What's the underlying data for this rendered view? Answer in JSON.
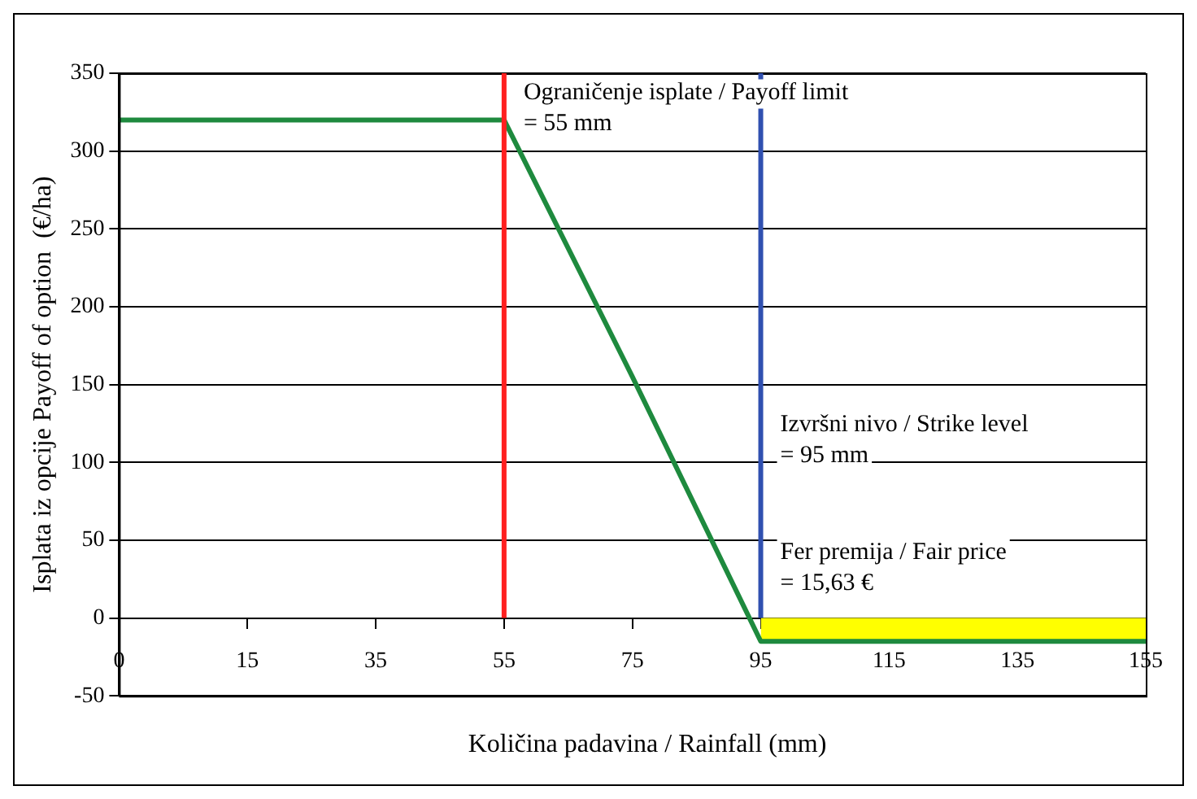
{
  "chart_data": {
    "type": "line",
    "xlabel": "Količina padavina / Rainfall (mm)",
    "ylabel": "Isplata iz opcije Payoff of option  (€/ha)",
    "categories": [
      "0",
      "15",
      "35",
      "55",
      "75",
      "95",
      "115",
      "135",
      "155"
    ],
    "series": [
      {
        "type": "area",
        "color": "#ffff00",
        "values": [
          null,
          null,
          null,
          null,
          null,
          -15,
          -15,
          -15,
          -15
        ]
      },
      {
        "type": "line",
        "color": "#1e8a3e",
        "values": [
          320,
          320,
          320,
          320,
          155,
          -15,
          -15,
          -15,
          -15
        ]
      }
    ],
    "ylim": [
      -50,
      350
    ],
    "yticks": [
      -50,
      0,
      50,
      100,
      150,
      200,
      250,
      300,
      350
    ],
    "grid": "y",
    "legend": false,
    "marker": "none",
    "line_style": "solid",
    "ref_lines": [
      {
        "axis": "x",
        "value": "55",
        "color": "#ff2020"
      },
      {
        "axis": "x",
        "value": "95",
        "color": "#3050b0"
      }
    ],
    "annotations": [
      {
        "text": "Ograničenje isplate / Payoff limit\n= 55 mm",
        "x": "55",
        "y": 345
      },
      {
        "text": "Izvršni nivo / Strike level\n= 95 mm",
        "x": "95",
        "y": 132
      },
      {
        "text": "Fer premija / Fair price\n= 15,63 €",
        "x": "95",
        "y": 50
      }
    ]
  }
}
